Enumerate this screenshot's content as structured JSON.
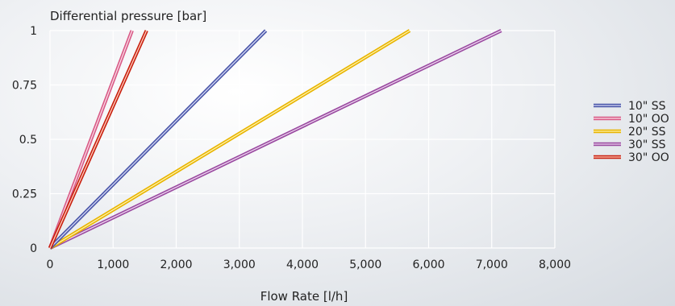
{
  "chart_data": {
    "type": "line",
    "ylabel": "Differential pressure [bar]",
    "xlabel": "Flow Rate [l/h]",
    "xlim": [
      0,
      8000
    ],
    "ylim": [
      0,
      1
    ],
    "x_ticks": [
      0,
      1000,
      2000,
      3000,
      4000,
      5000,
      6000,
      7000,
      8000
    ],
    "x_tick_labels": [
      "0",
      "1,000",
      "2,000",
      "3,000",
      "4,000",
      "5,000",
      "6,000",
      "7,000",
      "8,000"
    ],
    "y_ticks": [
      0,
      0.25,
      0.5,
      0.75,
      1
    ],
    "y_tick_labels": [
      "0",
      "0.25",
      "0.5",
      "0.75",
      "1"
    ],
    "grid": true,
    "legend_position": "right",
    "series": [
      {
        "name": "10\" SS",
        "color": "#4a56a8",
        "light": "#d5d8f5",
        "points": [
          [
            0,
            0
          ],
          [
            3420,
            1
          ]
        ]
      },
      {
        "name": "10\" OO",
        "color": "#d85a86",
        "light": "#fbdbe6",
        "points": [
          [
            0,
            0
          ],
          [
            1300,
            1
          ]
        ]
      },
      {
        "name": "20\" SS",
        "color": "#e8b400",
        "light": "#fff3b0",
        "points": [
          [
            0,
            0
          ],
          [
            5700,
            1
          ]
        ]
      },
      {
        "name": "30\" SS",
        "color": "#9a4aa0",
        "light": "#ecd5ef",
        "points": [
          [
            0,
            0
          ],
          [
            7150,
            1
          ]
        ]
      },
      {
        "name": "30\" OO",
        "color": "#c8200f",
        "light": "#ffd0c0",
        "points": [
          [
            0,
            0
          ],
          [
            1530,
            1
          ]
        ]
      }
    ]
  }
}
